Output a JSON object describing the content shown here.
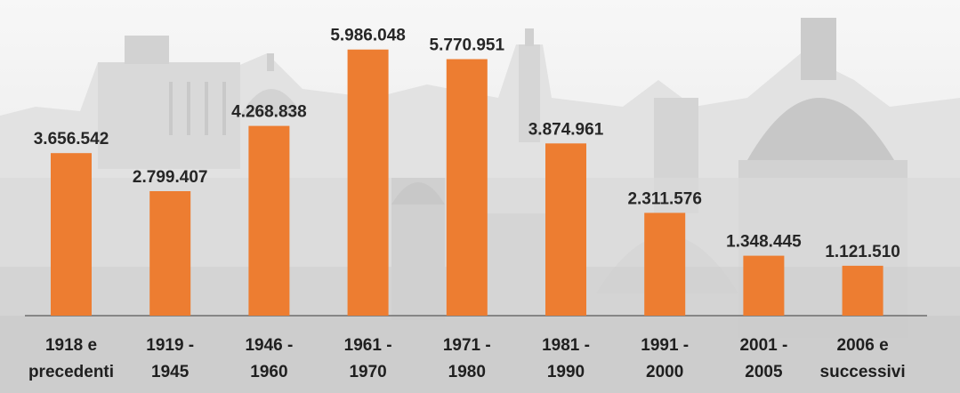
{
  "chart_data": {
    "type": "bar",
    "categories": [
      [
        "1918 e",
        "precedenti"
      ],
      [
        "1919 -",
        "1945"
      ],
      [
        "1946 -",
        "1960"
      ],
      [
        "1961 -",
        "1970"
      ],
      [
        "1971 -",
        "1980"
      ],
      [
        "1981 -",
        "1990"
      ],
      [
        "1991 -",
        "2000"
      ],
      [
        "2001 -",
        "2005"
      ],
      [
        "2006 e",
        "successivi"
      ]
    ],
    "values": [
      3656542,
      2799407,
      4268838,
      5986048,
      5770951,
      3874961,
      2311576,
      1348445,
      1121510
    ],
    "data_labels": [
      "3.656.542",
      "2.799.407",
      "4.268.838",
      "5.986.048",
      "5.770.951",
      "3.874.961",
      "2.311.576",
      "1.348.445",
      "1.121.510"
    ],
    "title": "",
    "xlabel": "",
    "ylabel": "",
    "ylim": [
      0,
      6000000
    ],
    "grid": false,
    "legend": "none",
    "bar_color": "#ED7D31",
    "axis_color": "#595959",
    "background": "grayscale-cityscape-photo"
  }
}
